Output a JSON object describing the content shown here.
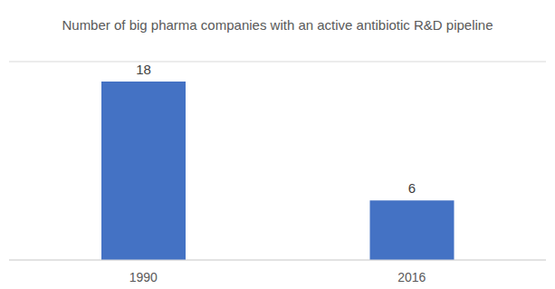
{
  "chart_data": {
    "type": "bar",
    "title": "Number of big pharma companies with an active antibiotic R&D pipeline",
    "categories": [
      "1990",
      "2016"
    ],
    "values": [
      18,
      6
    ],
    "color": "#4472c4",
    "ylim": [
      0,
      20
    ],
    "yticks": [
      0,
      2,
      4,
      6,
      8,
      10,
      12,
      14,
      16,
      18,
      20
    ],
    "grid": true,
    "data_labels": true,
    "tick_labels": "x"
  }
}
